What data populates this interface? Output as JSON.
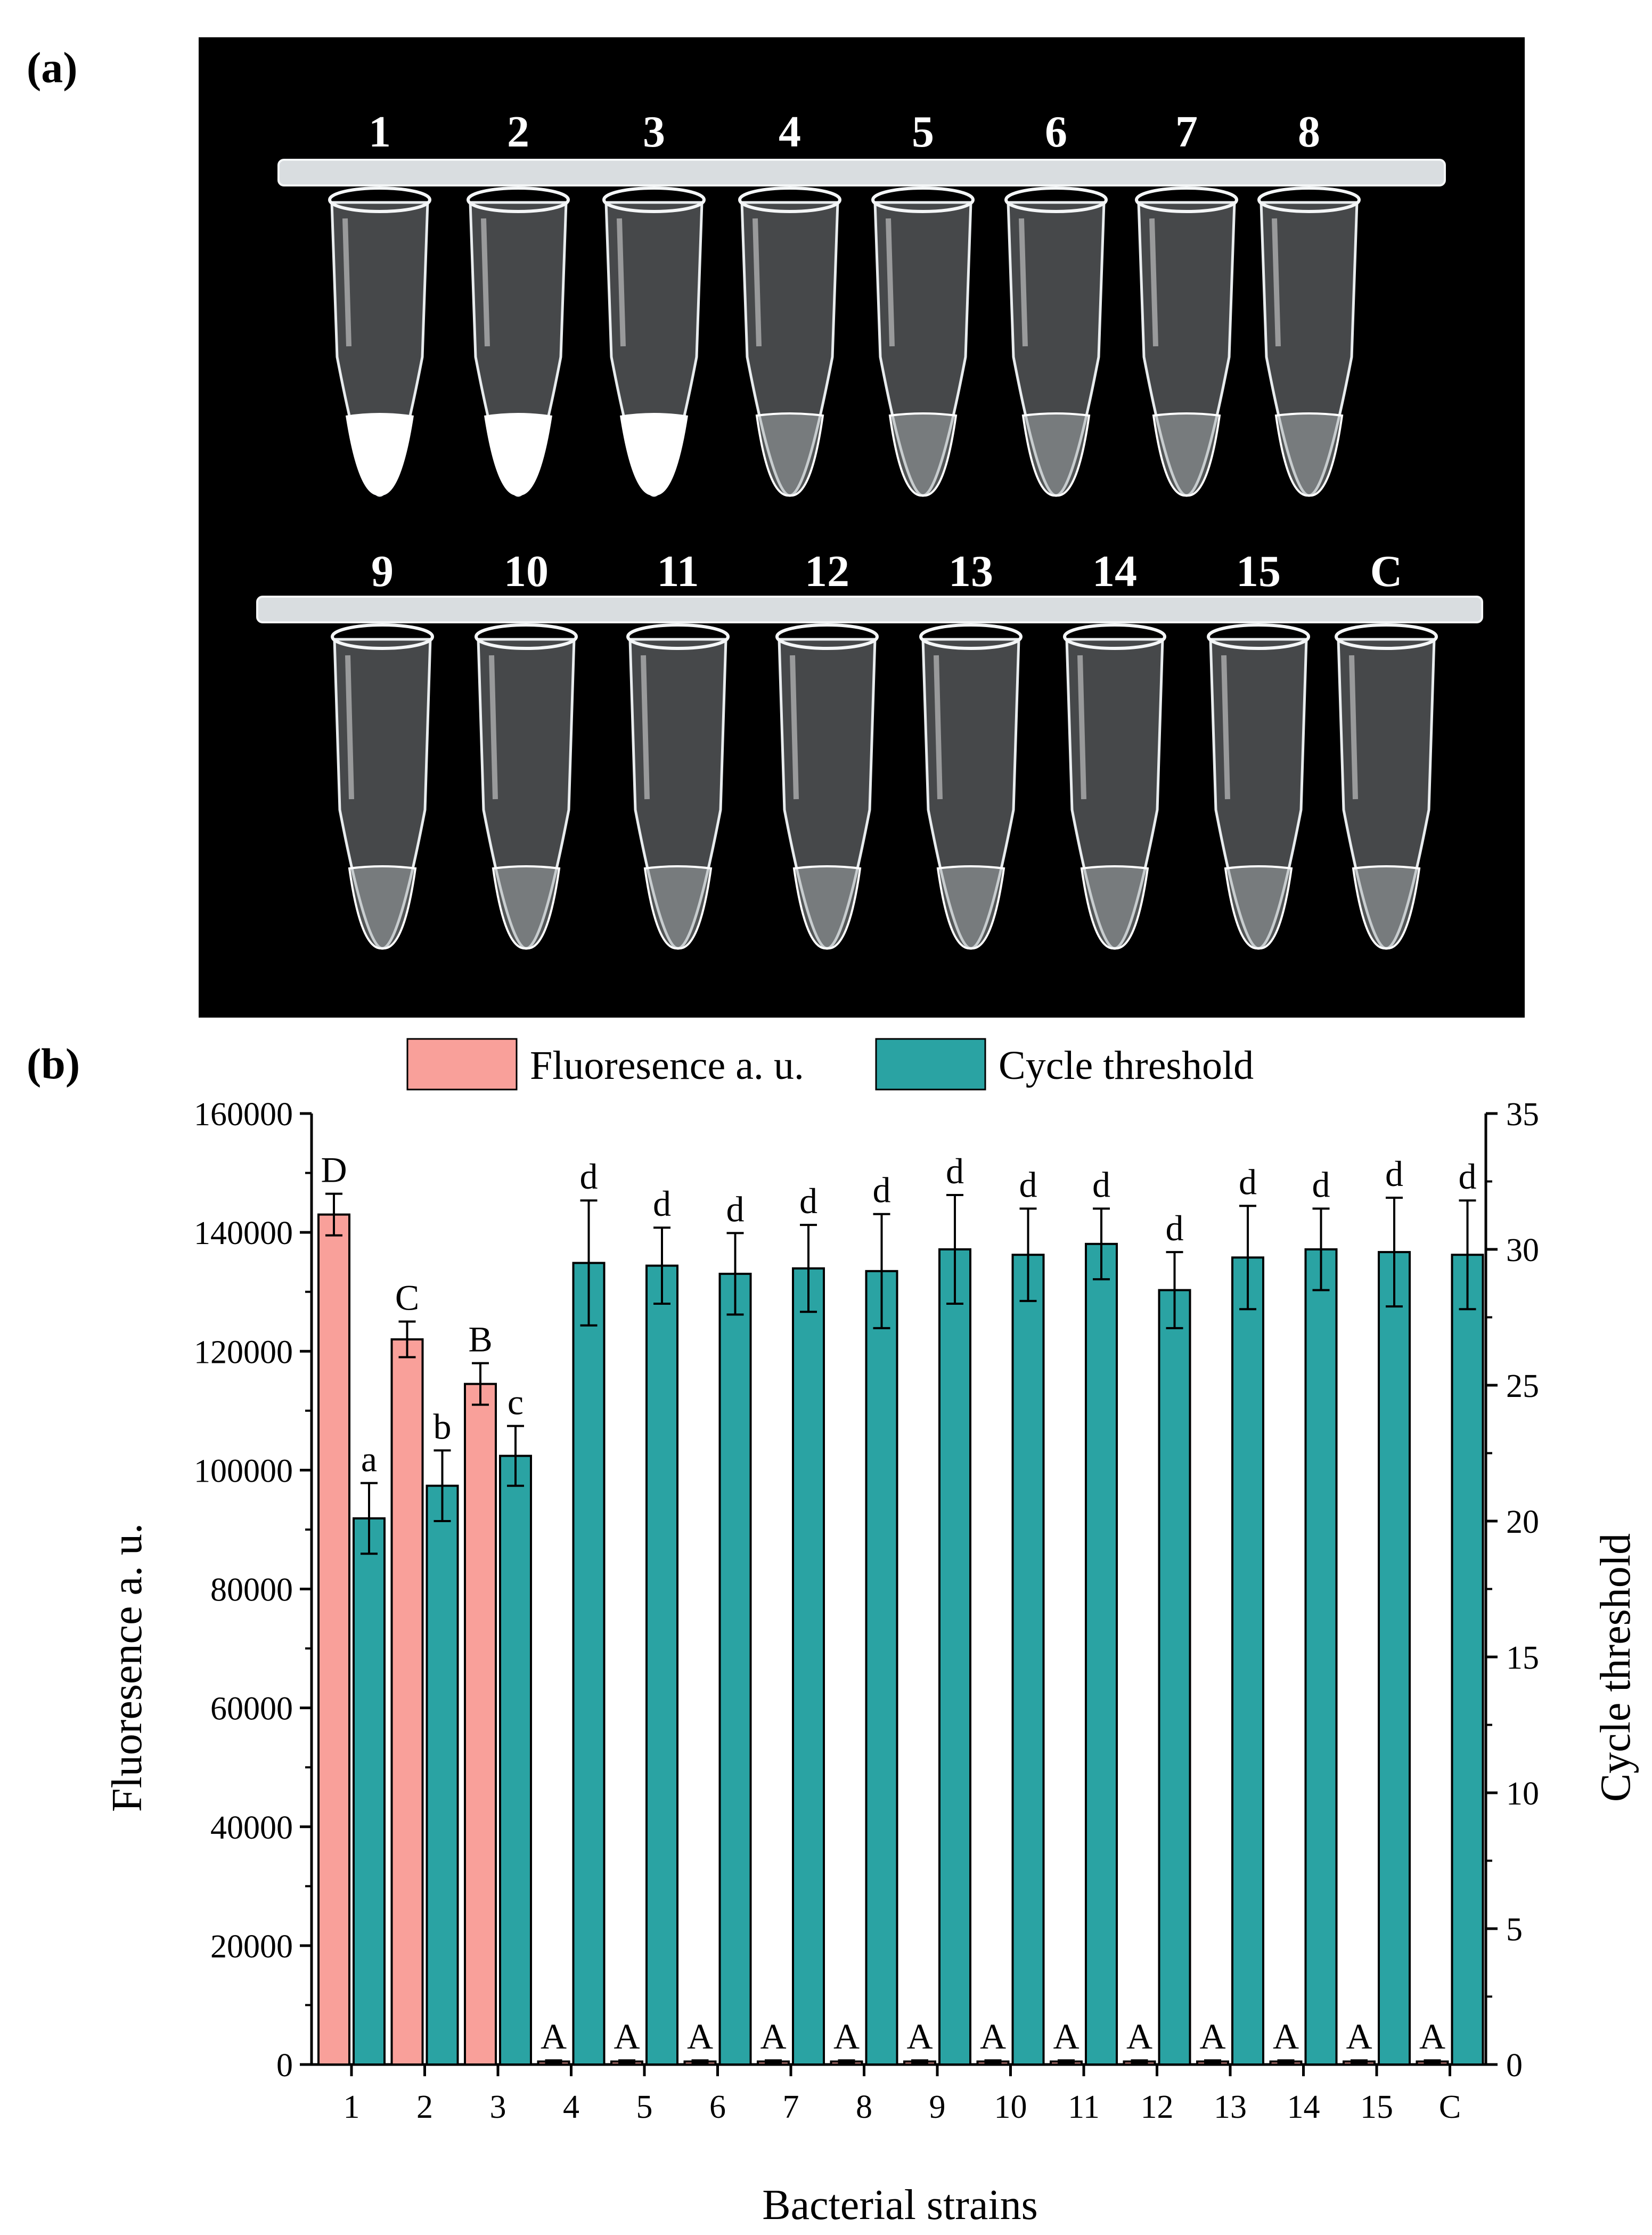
{
  "panel_a": {
    "label": "(a)",
    "row1_tubes": [
      {
        "label": "1",
        "positive": true
      },
      {
        "label": "2",
        "positive": true
      },
      {
        "label": "3",
        "positive": true
      },
      {
        "label": "4",
        "positive": false
      },
      {
        "label": "5",
        "positive": false
      },
      {
        "label": "6",
        "positive": false
      },
      {
        "label": "7",
        "positive": false
      },
      {
        "label": "8",
        "positive": false
      }
    ],
    "row2_tubes": [
      {
        "label": "9",
        "positive": false
      },
      {
        "label": "10",
        "positive": false
      },
      {
        "label": "11",
        "positive": false
      },
      {
        "label": "12",
        "positive": false
      },
      {
        "label": "13",
        "positive": false
      },
      {
        "label": "14",
        "positive": false
      },
      {
        "label": "15",
        "positive": false
      },
      {
        "label": "C",
        "positive": false
      }
    ]
  },
  "panel_b": {
    "label": "(b)"
  },
  "chart_data": {
    "type": "bar",
    "title": "",
    "xlabel": "Bacterial strains",
    "ylabel": "Fluoresence a. u.",
    "y2label": "Cycle threshold",
    "ylim": [
      0,
      160000
    ],
    "y2lim": [
      0,
      35
    ],
    "yticks": [
      "0",
      "20000",
      "40000",
      "60000",
      "80000",
      "100000",
      "120000",
      "140000",
      "160000"
    ],
    "y2ticks": [
      "0",
      "5",
      "10",
      "15",
      "20",
      "25",
      "30",
      "35"
    ],
    "legend_position": "top",
    "categories": [
      "1",
      "2",
      "3",
      "4",
      "5",
      "6",
      "7",
      "8",
      "9",
      "10",
      "11",
      "12",
      "13",
      "14",
      "15",
      "C"
    ],
    "series": [
      {
        "name": "Fluoresence a. u.",
        "axis": "left",
        "color": "#f9a09a",
        "values": [
          143000,
          122000,
          114500,
          500,
          500,
          500,
          500,
          500,
          500,
          500,
          500,
          500,
          500,
          500,
          500,
          500
        ],
        "errors": [
          3500,
          3000,
          3500,
          200,
          200,
          200,
          200,
          200,
          200,
          200,
          200,
          200,
          200,
          200,
          200,
          200
        ],
        "letters": [
          "D",
          "C",
          "B",
          "A",
          "A",
          "A",
          "A",
          "A",
          "A",
          "A",
          "A",
          "A",
          "A",
          "A",
          "A",
          "A"
        ]
      },
      {
        "name": "Cycle threshold",
        "axis": "right",
        "color": "#2aa3a3",
        "values": [
          20.1,
          21.3,
          22.4,
          29.5,
          29.4,
          29.1,
          29.3,
          29.2,
          30.0,
          29.8,
          30.2,
          28.5,
          29.7,
          30.0,
          29.9,
          29.8
        ],
        "errors": [
          1.3,
          1.3,
          1.1,
          2.3,
          1.4,
          1.5,
          1.6,
          2.1,
          2.0,
          1.7,
          1.3,
          1.4,
          1.9,
          1.5,
          2.0,
          2.0
        ],
        "letters": [
          "a",
          "b",
          "c",
          "d",
          "d",
          "d",
          "d",
          "d",
          "d",
          "d",
          "d",
          "d",
          "d",
          "d",
          "d",
          "d"
        ]
      }
    ]
  }
}
